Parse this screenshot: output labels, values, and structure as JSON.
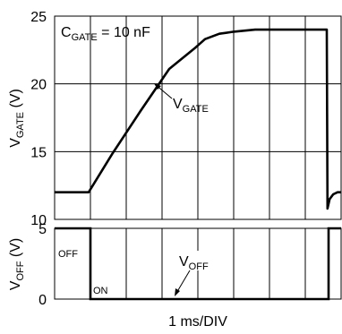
{
  "chart_data": [
    {
      "type": "line",
      "panel": "top",
      "ylabel_main": "V",
      "ylabel_sub": "GATE",
      "ylabel_unit": " (V)",
      "ylim": [
        10,
        25
      ],
      "yticks": [
        "25",
        "20",
        "15",
        "10"
      ],
      "xlabel": "1 ms/DIV",
      "x_divisions": 8,
      "grid": true,
      "annotation": {
        "main": "C",
        "sub": "GATE",
        "rest": " = 10 nF"
      },
      "series": [
        {
          "label_main": "V",
          "label_sub": "GATE",
          "x": [
            0,
            0.95,
            1.6,
            2.4,
            3.2,
            3.9,
            4.2,
            4.6,
            5.0,
            5.6,
            6.0,
            6.6,
            7.5,
            7.6,
            7.62,
            7.68,
            7.78,
            7.9,
            8.0
          ],
          "y": [
            12,
            12,
            14.8,
            18.0,
            21.1,
            22.6,
            23.3,
            23.7,
            23.85,
            24.0,
            24.0,
            24.0,
            24.0,
            24.0,
            10.8,
            11.5,
            11.85,
            12,
            12
          ]
        }
      ]
    },
    {
      "type": "line",
      "panel": "bottom",
      "ylabel_main": "V",
      "ylabel_sub": "OFF",
      "ylabel_unit": " (V)",
      "ylim": [
        0,
        5
      ],
      "yticks": [
        "5",
        "0"
      ],
      "grid": true,
      "state_labels": [
        "OFF",
        "ON"
      ],
      "series": [
        {
          "label_main": "V",
          "label_sub": "OFF",
          "x": [
            0,
            1.0,
            1.0,
            7.65,
            7.65,
            8.0
          ],
          "y": [
            5,
            5,
            0,
            0,
            5,
            5
          ]
        }
      ]
    }
  ]
}
